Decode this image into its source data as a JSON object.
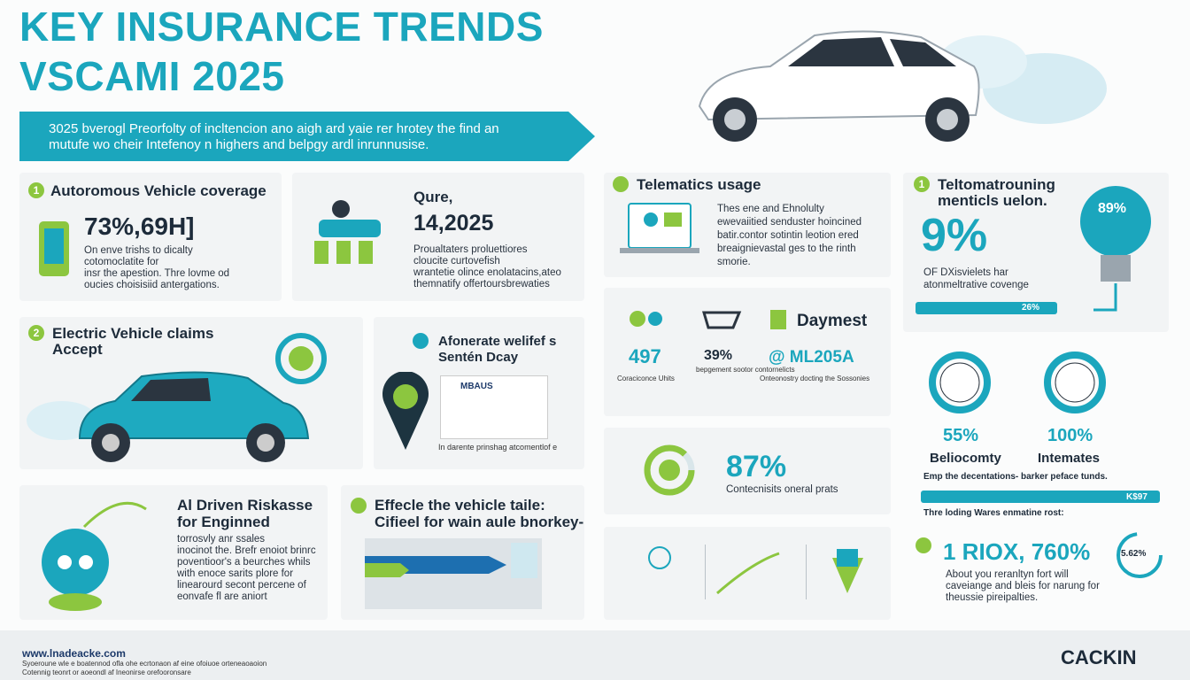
{
  "header": {
    "title": [
      "KEY INSURANCE TRENDS",
      "VSCAMI 2025"
    ],
    "banner": [
      "3025 bverogl Preorfolty of incltencion ano aigh ard yaie rer hrotey the find an",
      "mutufe wo cheir Intefenoy n highers and belpgy ardl inrunnusise."
    ]
  },
  "sections": [
    {
      "number": "1",
      "title": "Autoromous Vehicle coverage",
      "stat": "73%,69H]",
      "lines": [
        "On enve trishs to dicalty",
        "cotomoclatite for",
        "insr the apestion. Thre lovme od",
        "oucies choisisiid antergations."
      ]
    },
    {
      "title": "Qure,",
      "stat": "14,2025",
      "lines": [
        "Proualtaters proluettiores",
        "cloucite curtovefish",
        "wrantetie olince enolatacins,ateo",
        "themnatify offertoursbrewaties"
      ]
    },
    {
      "number": "2",
      "title": "Electric Vehicle claims",
      "subtitle": "Accept"
    },
    {
      "title": "Afonerate welifef s",
      "subtitle": "Sentén Dcay",
      "logo": "MBAUS",
      "caption": "In darente prinshag atcomentlof e"
    },
    {
      "title": "Al Driven Riskasse",
      "subtitle": "for Enginned",
      "lines": [
        "torrosvly anr ssales",
        "inocinot the. Brefr enoiot brinrc",
        "poventioor's a beurches whils",
        "with enoce sarits plore for",
        "linearourd secont percene of",
        "eonvafe fl are aniort"
      ]
    },
    {
      "title": "Effecle the vehicle taile:",
      "subtitle": "Cifieel for wain aule bnorkey-"
    }
  ],
  "telematics": {
    "title": "Telematics usage",
    "lines": [
      "Thes ene and Ehnolulty",
      "ewevaiitied senduster hoincined",
      "batir.contor sotintin leotion ered",
      "breaignievastal ges to the rinth",
      "smorie."
    ],
    "stats_title": "Daymest",
    "stats": [
      {
        "value": "497",
        "label": "Coraciconce Uhits"
      },
      {
        "value": "39%",
        "label": "bepgement sootor contornelicts"
      },
      {
        "value": "@ ML205A",
        "label": "Onteonostry docting the Sossonies"
      }
    ],
    "rate": {
      "value": "87%",
      "label": "Contecnisits oneral prats"
    }
  },
  "right": {
    "number": "1",
    "title": [
      "Teltomatrouning",
      "menticls uelon."
    ],
    "bulb": "89%",
    "stat": "9%",
    "lines": [
      "OF DXisvielets har",
      "atonmeltrative covenge"
    ],
    "bar": "26%",
    "rings": [
      {
        "value": "55%",
        "label": "Beliocomty"
      },
      {
        "value": "100%",
        "label": "Intemates"
      }
    ],
    "note": "Emp the decentations- barker peface tunds.",
    "bar2": "K$97",
    "note2": "Thre loding Wares enmatine rost:",
    "final": {
      "value": "1 RIOX, 760%",
      "donut": "5.62%",
      "lines": [
        "About you reranltyn fort will",
        "caveiange and bleis for narung for",
        "theussie pireipalties."
      ]
    }
  },
  "footer": {
    "url": "www.lnadeacke.com",
    "lines": [
      "Syoeroune wle e boatennod ofla ohe ecrtonaon af eine ofoiuoe orteneaoaoion",
      "Cotennig teonrt or aoeondl af Ineonirse orefooronsare"
    ],
    "logo": "CACKIN"
  }
}
